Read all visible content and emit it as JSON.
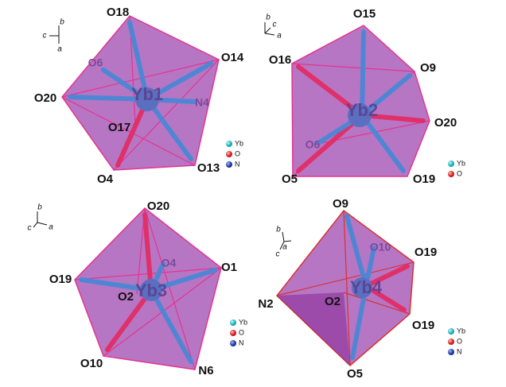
{
  "panels": [
    {
      "center": "Yb1",
      "atoms": [
        "O18",
        "O14",
        "O6",
        "N4",
        "O20",
        "O17",
        "O13",
        "O4"
      ],
      "axes": [
        "b",
        "c",
        "a"
      ],
      "legend": [
        "Yb",
        "O",
        "N"
      ]
    },
    {
      "center": "Yb2",
      "atoms": [
        "O15",
        "O16",
        "O9",
        "O20",
        "O6",
        "O5",
        "O19"
      ],
      "axes": [
        "b",
        "c",
        "a"
      ],
      "legend": [
        "Yb",
        "O"
      ]
    },
    {
      "center": "Yb3",
      "atoms": [
        "O20",
        "O4",
        "O1",
        "O19",
        "O2",
        "O10",
        "N6"
      ],
      "axes": [
        "b",
        "c",
        "a"
      ],
      "legend": [
        "Yb",
        "O",
        "N"
      ]
    },
    {
      "center": "Yb4",
      "atoms": [
        "O9",
        "O10",
        "O19",
        "N2",
        "O2",
        "O19",
        "O5"
      ],
      "axes": [
        "b",
        "c",
        "a"
      ],
      "legend": [
        "Yb",
        "O",
        "N"
      ]
    }
  ]
}
